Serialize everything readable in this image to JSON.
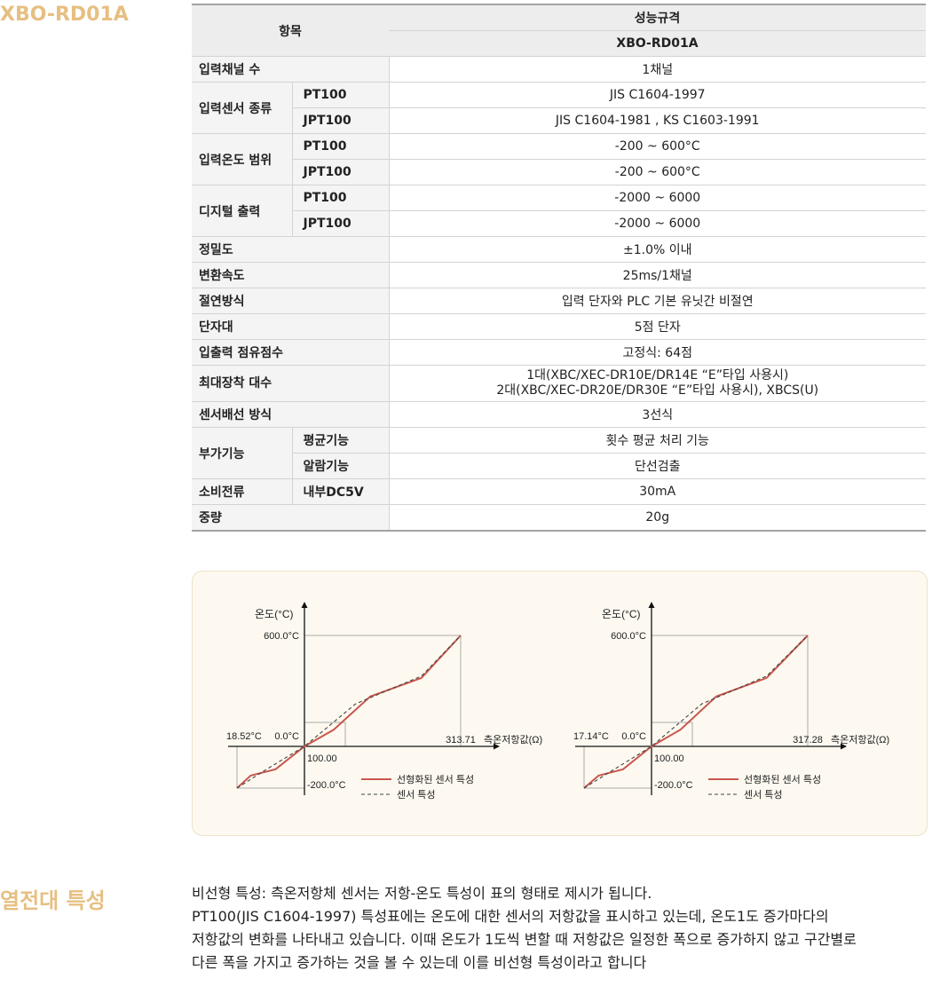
{
  "model_heading": "XBO-RD01A",
  "spec_table": {
    "header_item": "항목",
    "header_spec": "성능규격",
    "header_model": "XBO-RD01A",
    "rows": [
      {
        "label": "입력채널 수",
        "value": "1채널"
      },
      {
        "label": "입력센서 종류",
        "sub": [
          {
            "name": "PT100",
            "value": "JIS C1604-1997"
          },
          {
            "name": "JPT100",
            "value": "JIS C1604-1981 , KS C1603-1991"
          }
        ]
      },
      {
        "label": "입력온도 범위",
        "sub": [
          {
            "name": "PT100",
            "value": "-200 ~ 600°C"
          },
          {
            "name": "JPT100",
            "value": "-200 ~ 600°C"
          }
        ]
      },
      {
        "label": "디지털 출력",
        "sub": [
          {
            "name": "PT100",
            "value": "-2000 ~ 6000"
          },
          {
            "name": "JPT100",
            "value": "-2000 ~ 6000"
          }
        ]
      },
      {
        "label": "정밀도",
        "value": "±1.0% 이내"
      },
      {
        "label": "변환속도",
        "value": "25ms/1채널"
      },
      {
        "label": "절연방식",
        "value": "입력 단자와 PLC 기본 유닛간 비절연"
      },
      {
        "label": "단자대",
        "value": "5점 단자"
      },
      {
        "label": "입출력 점유점수",
        "value": "고정식: 64점"
      },
      {
        "label": "최대장착 대수",
        "value_lines": [
          "1대(XBC/XEC-DR10E/DR14E “E”타입 사용시)",
          "2대(XBC/XEC-DR20E/DR30E “E”타입 사용시), XBCS(U)"
        ]
      },
      {
        "label": "센서배선 방식",
        "value": "3선식"
      },
      {
        "label": "부가기능",
        "sub": [
          {
            "name": "평균기능",
            "value": "횟수 평균 처리 기능"
          },
          {
            "name": "알람기능",
            "value": "단선검출"
          }
        ]
      },
      {
        "label": "소비전류",
        "sub": [
          {
            "name": "내부DC5V",
            "value": "30mA"
          }
        ]
      },
      {
        "label": "중량",
        "value": "20g"
      }
    ]
  },
  "chart_data": [
    {
      "type": "line",
      "ylabel": "온도(°C)",
      "xlabel": "측온저항값(Ω)",
      "y_max_label": "600.0°C",
      "y_zero_label": "0.0°C",
      "y_min_label": "-200.0°C",
      "x_left_label": "18.52°C",
      "x_origin_label": "100.00",
      "x_max_label": "313.71",
      "ylim": [
        -200,
        600
      ],
      "series": [
        {
          "name": "선형화된 센서 특성",
          "style": "solid",
          "color": "#c9574f",
          "x": [
            18.52,
            35,
            65,
            100,
            140,
            190,
            260,
            313.71
          ],
          "y": [
            -200,
            -140,
            -110,
            0,
            90,
            270,
            370,
            600
          ]
        },
        {
          "name": "센서 특성",
          "style": "dashed",
          "color": "#444444",
          "x": [
            18.52,
            50,
            100,
            170,
            260,
            313.71
          ],
          "y": [
            -200,
            -120,
            0,
            230,
            380,
            600
          ]
        }
      ]
    },
    {
      "type": "line",
      "ylabel": "온도(°C)",
      "xlabel": "측온저항값(Ω)",
      "y_max_label": "600.0°C",
      "y_zero_label": "0.0°C",
      "y_min_label": "-200.0°C",
      "x_left_label": "17.14°C",
      "x_origin_label": "100.00",
      "x_max_label": "317.28",
      "ylim": [
        -200,
        600
      ],
      "series": [
        {
          "name": "선형화된 센서 특성",
          "style": "solid",
          "color": "#c9574f",
          "x": [
            17.14,
            35,
            65,
            100,
            140,
            190,
            260,
            317.28
          ],
          "y": [
            -200,
            -140,
            -110,
            0,
            90,
            270,
            370,
            600
          ]
        },
        {
          "name": "센서 특성",
          "style": "dashed",
          "color": "#444444",
          "x": [
            17.14,
            50,
            100,
            170,
            260,
            317.28
          ],
          "y": [
            -200,
            -120,
            0,
            230,
            380,
            600
          ]
        }
      ]
    }
  ],
  "thermo_section": {
    "title": "열전대 특성",
    "lines": [
      "비선형 특성: 측온저항체 센서는 저항-온도 특성이 표의 형태로 제시가 됩니다.",
      "PT100(JIS C1604-1997) 특성표에는 온도에 대한 센서의 저항값을 표시하고 있는데, 온도1도 증가마다의",
      "저항값의 변화를 나타내고 있습니다. 이때 온도가 1도씩 변할 때 저항값은 일정한 폭으로 증가하지 않고 구간별로",
      "다른 폭을 가지고 증가하는 것을 볼 수 있는데 이를 비선형 특성이라고 합니다"
    ]
  }
}
